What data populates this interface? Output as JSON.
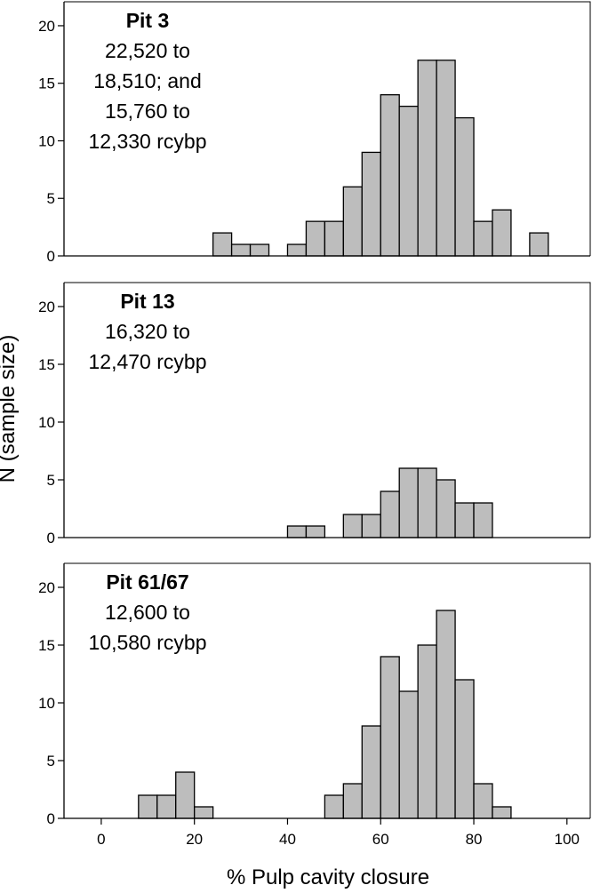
{
  "chart_data": {
    "type": "bar",
    "xlabel": "% Pulp cavity closure",
    "ylabel": "N (sample size)",
    "xlim": [
      -8,
      105
    ],
    "ylim": [
      0,
      21
    ],
    "bin_width": 4,
    "x_ticks": [
      0,
      20,
      40,
      60,
      80,
      100
    ],
    "y_ticks": [
      0,
      5,
      10,
      15,
      20
    ],
    "panels": [
      {
        "title": "Pit 3",
        "subtitle_lines": [
          "22,520 to",
          "18,510; and",
          "15,760 to",
          "12,330 rcybp"
        ],
        "bins": [
          {
            "start": 24,
            "count": 2
          },
          {
            "start": 28,
            "count": 1
          },
          {
            "start": 32,
            "count": 1
          },
          {
            "start": 40,
            "count": 1
          },
          {
            "start": 44,
            "count": 3
          },
          {
            "start": 48,
            "count": 3
          },
          {
            "start": 52,
            "count": 6
          },
          {
            "start": 56,
            "count": 9
          },
          {
            "start": 60,
            "count": 14
          },
          {
            "start": 64,
            "count": 13
          },
          {
            "start": 68,
            "count": 17
          },
          {
            "start": 72,
            "count": 17
          },
          {
            "start": 76,
            "count": 12
          },
          {
            "start": 80,
            "count": 3
          },
          {
            "start": 84,
            "count": 4
          },
          {
            "start": 92,
            "count": 2
          }
        ]
      },
      {
        "title": "Pit 13",
        "subtitle_lines": [
          "16,320 to",
          "12,470 rcybp"
        ],
        "bins": [
          {
            "start": 40,
            "count": 1
          },
          {
            "start": 44,
            "count": 1
          },
          {
            "start": 52,
            "count": 2
          },
          {
            "start": 56,
            "count": 2
          },
          {
            "start": 60,
            "count": 4
          },
          {
            "start": 64,
            "count": 6
          },
          {
            "start": 68,
            "count": 6
          },
          {
            "start": 72,
            "count": 5
          },
          {
            "start": 76,
            "count": 3
          },
          {
            "start": 80,
            "count": 3
          }
        ]
      },
      {
        "title": "Pit 61/67",
        "subtitle_lines": [
          "12,600 to",
          "10,580 rcybp"
        ],
        "bins": [
          {
            "start": 8,
            "count": 2
          },
          {
            "start": 12,
            "count": 2
          },
          {
            "start": 16,
            "count": 4
          },
          {
            "start": 20,
            "count": 1
          },
          {
            "start": 48,
            "count": 2
          },
          {
            "start": 52,
            "count": 3
          },
          {
            "start": 56,
            "count": 8
          },
          {
            "start": 60,
            "count": 14
          },
          {
            "start": 64,
            "count": 11
          },
          {
            "start": 68,
            "count": 15
          },
          {
            "start": 72,
            "count": 18
          },
          {
            "start": 76,
            "count": 12
          },
          {
            "start": 80,
            "count": 3
          },
          {
            "start": 84,
            "count": 1
          }
        ]
      }
    ]
  }
}
